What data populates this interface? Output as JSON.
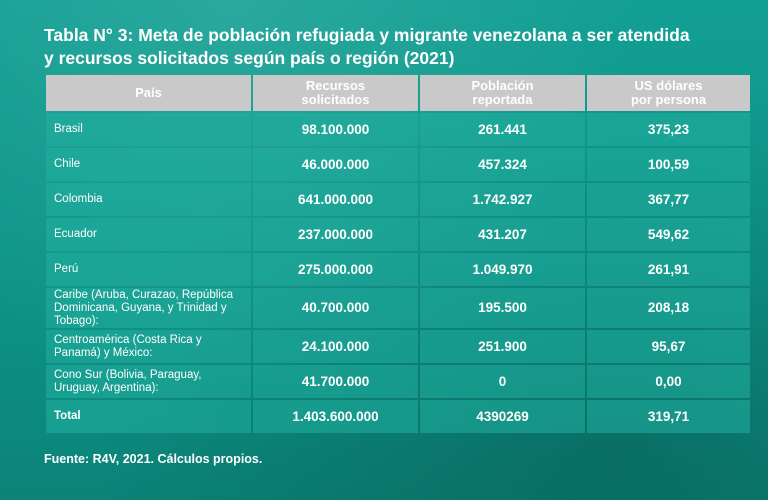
{
  "title": {
    "line1": "Tabla N° 3: Meta de población refugiada y migrante venezolana a ser atendida",
    "line2": "y recursos solicitados según país o región (2021)"
  },
  "table": {
    "headers": {
      "pais": "País",
      "recursos_l1": "Recursos",
      "recursos_l2": "solicitados",
      "poblacion_l1": "Población",
      "poblacion_l2": "reportada",
      "usd_l1": "US dólares",
      "usd_l2": "por persona"
    },
    "rows": [
      {
        "pais": "Brasil",
        "recursos": "98.100.000",
        "poblacion": "261.441",
        "usd": "375,23"
      },
      {
        "pais": "Chile",
        "recursos": "46.000.000",
        "poblacion": "457.324",
        "usd": "100,59"
      },
      {
        "pais": "Colombia",
        "recursos": "641.000.000",
        "poblacion": "1.742.927",
        "usd": "367,77"
      },
      {
        "pais": "Ecuador",
        "recursos": "237.000.000",
        "poblacion": "431.207",
        "usd": "549,62"
      },
      {
        "pais": "Perú",
        "recursos": "275.000.000",
        "poblacion": "1.049.970",
        "usd": "261,91"
      },
      {
        "pais": "Caribe (Aruba, Curazao, República Dominicana, Guyana, y Trinidad y Tobago):",
        "recursos": "40.700.000",
        "poblacion": "195.500",
        "usd": "208,18"
      },
      {
        "pais": "Centroamérica (Costa Rica y Panamá) y México:",
        "recursos": "24.100.000",
        "poblacion": "251.900",
        "usd": "95,67"
      },
      {
        "pais": "Cono Sur (Bolivia, Paraguay, Uruguay, Argentina):",
        "recursos": "41.700.000",
        "poblacion": "0",
        "usd": "0,00"
      },
      {
        "pais": "Total",
        "recursos": "1.403.600.000",
        "poblacion": "4390269",
        "usd": "319,71"
      }
    ]
  },
  "source": "Fuente: R4V, 2021. Cálculos propios.",
  "colors": {
    "background": "#0f9c8f",
    "header_cell": "#c9c9c9",
    "body_cell": "#20b0a0",
    "text": "#ffffff"
  }
}
